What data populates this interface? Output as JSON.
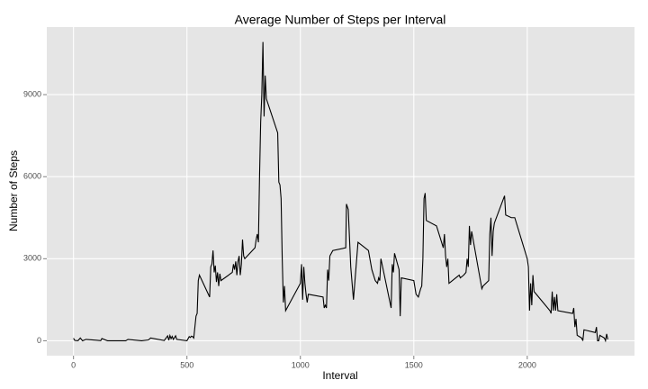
{
  "chart_data": {
    "type": "line",
    "title": "Average Number of Steps per Interval",
    "x_label": "Interval",
    "y_label": "Number of Steps",
    "color": "#000000",
    "grid": true,
    "xlim": [
      -117.75,
      2472.75
    ],
    "ylim": [
      -546,
      11473
    ],
    "xticks": [
      0,
      500,
      1000,
      1500,
      2000
    ],
    "yticks": [
      0,
      3000,
      6000,
      9000
    ],
    "x": [
      0,
      5,
      10,
      20,
      30,
      40,
      55,
      100,
      120,
      125,
      150,
      200,
      230,
      240,
      300,
      330,
      340,
      400,
      415,
      420,
      425,
      430,
      435,
      440,
      450,
      455,
      500,
      510,
      515,
      520,
      525,
      530,
      540,
      545,
      550,
      555,
      600,
      605,
      610,
      615,
      620,
      625,
      630,
      635,
      640,
      645,
      650,
      700,
      705,
      710,
      715,
      720,
      725,
      730,
      735,
      740,
      745,
      750,
      755,
      800,
      805,
      810,
      815,
      820,
      825,
      830,
      835,
      840,
      845,
      850,
      900,
      905,
      910,
      915,
      920,
      925,
      930,
      935,
      1000,
      1005,
      1010,
      1015,
      1020,
      1025,
      1030,
      1035,
      1100,
      1105,
      1110,
      1115,
      1120,
      1125,
      1130,
      1143,
      1200,
      1203,
      1211,
      1222,
      1234,
      1254,
      1300,
      1315,
      1330,
      1340,
      1345,
      1350,
      1355,
      1400,
      1405,
      1410,
      1415,
      1435,
      1440,
      1445,
      1500,
      1510,
      1520,
      1530,
      1535,
      1540,
      1545,
      1550,
      1555,
      1600,
      1630,
      1635,
      1640,
      1645,
      1650,
      1655,
      1700,
      1705,
      1720,
      1730,
      1735,
      1740,
      1745,
      1750,
      1755,
      1800,
      1805,
      1830,
      1835,
      1840,
      1845,
      1850,
      1855,
      1900,
      1905,
      1930,
      1945,
      2000,
      2005,
      2010,
      2015,
      2020,
      2025,
      2030,
      2100,
      2105,
      2110,
      2115,
      2120,
      2125,
      2130,
      2135,
      2200,
      2205,
      2210,
      2215,
      2220,
      2230,
      2240,
      2245,
      2250,
      2300,
      2305,
      2310,
      2315,
      2320,
      2330,
      2340,
      2345,
      2350,
      2355
    ],
    "values": [
      91,
      18,
      7,
      5,
      100,
      0,
      50,
      20,
      5,
      80,
      0,
      0,
      0,
      50,
      0,
      30,
      100,
      10,
      180,
      20,
      190,
      80,
      160,
      50,
      180,
      50,
      0,
      150,
      120,
      170,
      150,
      100,
      900,
      1000,
      2200,
      2400,
      1600,
      2700,
      2800,
      3300,
      2500,
      2750,
      2150,
      2500,
      2000,
      2450,
      2200,
      2500,
      2800,
      2600,
      2900,
      2400,
      2900,
      3100,
      2400,
      2800,
      3700,
      3100,
      3000,
      3400,
      3700,
      3900,
      3600,
      6000,
      8000,
      9000,
      10927,
      8200,
      9700,
      8850,
      7600,
      5800,
      5700,
      5200,
      3000,
      1400,
      2000,
      1100,
      2100,
      2800,
      1500,
      2700,
      2100,
      1700,
      1400,
      1700,
      1600,
      1200,
      1300,
      1200,
      2600,
      2200,
      3100,
      3300,
      3400,
      5000,
      4800,
      2700,
      1500,
      3600,
      3300,
      2600,
      2200,
      2100,
      2300,
      2200,
      3000,
      1200,
      2800,
      2500,
      3200,
      2600,
      900,
      2300,
      2200,
      1700,
      1600,
      1900,
      2000,
      3000,
      5200,
      5400,
      4400,
      4200,
      3400,
      3900,
      3100,
      2700,
      3000,
      2100,
      2400,
      2300,
      2400,
      2500,
      3000,
      2700,
      4200,
      3500,
      4000,
      1900,
      2000,
      2200,
      3900,
      4500,
      3100,
      4000,
      4300,
      5300,
      4600,
      4500,
      4500,
      3000,
      2700,
      1100,
      2100,
      1300,
      2400,
      1800,
      1100,
      1000,
      1800,
      1100,
      1600,
      1100,
      1700,
      1100,
      1000,
      1200,
      500,
      800,
      200,
      150,
      100,
      0,
      400,
      300,
      500,
      0,
      0,
      200,
      150,
      100,
      0,
      250,
      50
    ]
  }
}
